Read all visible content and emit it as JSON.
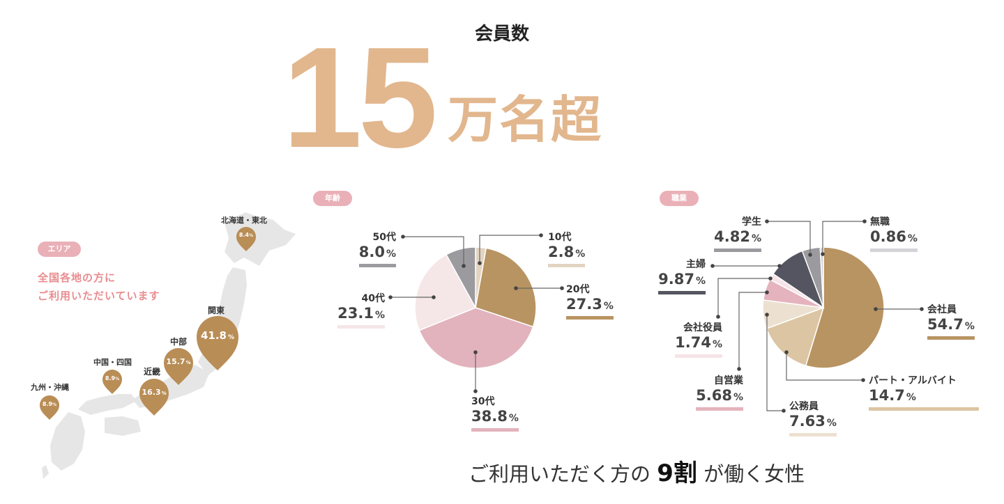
{
  "header": {
    "title": "会員数",
    "big_number": "15",
    "big_unit": "万名超"
  },
  "colors": {
    "accent": "#e2b78e",
    "pill": "#eab0b7",
    "pin": "#b98d56",
    "map": "#e6e6e6"
  },
  "area": {
    "badge": "エリア",
    "desc_line1": "全国各地の方に",
    "desc_line2": "ご利用いただいています",
    "regions": [
      {
        "name": "北海道・東北",
        "value": "8.4",
        "unit": "%"
      },
      {
        "name": "関東",
        "value": "41.8",
        "unit": "%"
      },
      {
        "name": "中部",
        "value": "15.7",
        "unit": "%"
      },
      {
        "name": "近畿",
        "value": "16.3",
        "unit": "%"
      },
      {
        "name": "中国・四国",
        "value": "8.9",
        "unit": "%"
      },
      {
        "name": "九州・沖縄",
        "value": "8.9",
        "unit": "%"
      }
    ]
  },
  "chart_data": [
    {
      "type": "pie",
      "title": "年齢",
      "unit": "%",
      "slices": [
        {
          "name": "10代",
          "value": 2.8,
          "label": "2.8",
          "color": "#e3d4c2"
        },
        {
          "name": "20代",
          "value": 27.3,
          "label": "27.3",
          "color": "#b89462"
        },
        {
          "name": "30代",
          "value": 38.8,
          "label": "38.8",
          "color": "#e2b3bd"
        },
        {
          "name": "40代",
          "value": 23.1,
          "label": "23.1",
          "color": "#f5e6e8"
        },
        {
          "name": "50代",
          "value": 8.0,
          "label": "8.0",
          "color": "#9b9b9f"
        }
      ]
    },
    {
      "type": "pie",
      "title": "職業",
      "unit": "%",
      "slices": [
        {
          "name": "会社員",
          "value": 54.7,
          "label": "54.7",
          "color": "#b89462"
        },
        {
          "name": "パート・アルバイト",
          "value": 14.7,
          "label": "14.7",
          "color": "#dcc5a3"
        },
        {
          "name": "公務員",
          "value": 7.63,
          "label": "7.63",
          "color": "#ece1d0"
        },
        {
          "name": "自営業",
          "value": 5.68,
          "label": "5.68",
          "color": "#e5b3bd"
        },
        {
          "name": "会社役員",
          "value": 1.74,
          "label": "1.74",
          "color": "#f6e4e8"
        },
        {
          "name": "主婦",
          "value": 9.87,
          "label": "9.87",
          "color": "#545560"
        },
        {
          "name": "学生",
          "value": 4.82,
          "label": "4.82",
          "color": "#9b9b9f"
        },
        {
          "name": "無職",
          "value": 0.86,
          "label": "0.86",
          "color": "#d3d3d8"
        }
      ]
    }
  ],
  "footer": {
    "before": "ご利用いただく方の",
    "highlight": "9割",
    "after": "が働く女性"
  }
}
